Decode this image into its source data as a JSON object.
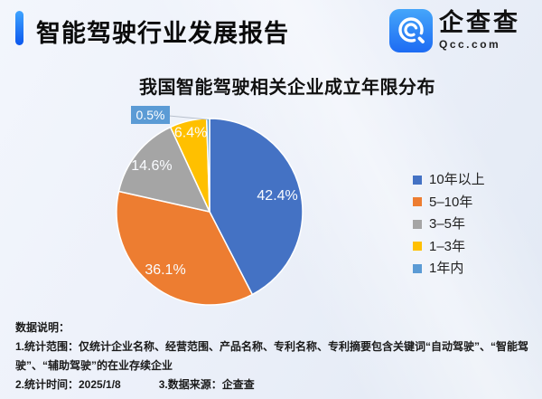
{
  "header": {
    "title": "智能驾驶行业发展报告",
    "logo": {
      "name": "企查查",
      "domain": "Qcc.com"
    }
  },
  "chart": {
    "title": "我国智能驾驶相关企业成立年限分布"
  },
  "chart_data": {
    "type": "pie",
    "title": "我国智能驾驶相关企业成立年限分布",
    "unit": "percent",
    "direction": "clockwise",
    "start_angle_deg": 0,
    "legend_position": "right",
    "slices": [
      {
        "label": "10年以上",
        "value": 42.4,
        "pct": "42.4%",
        "color": "#4472C4"
      },
      {
        "label": "5–10年",
        "value": 36.1,
        "pct": "36.1%",
        "color": "#ED7D31"
      },
      {
        "label": "3–5年",
        "value": 14.6,
        "pct": "14.6%",
        "color": "#A5A5A5"
      },
      {
        "label": "1–3年",
        "value": 6.4,
        "pct": "6.4%",
        "color": "#FFC000"
      },
      {
        "label": "1年内",
        "value": 0.5,
        "pct": "0.5%",
        "color": "#5B9BD5"
      }
    ],
    "callout": {
      "slice": "1年内",
      "pct": "0.5%"
    }
  },
  "footer": {
    "heading": "数据说明：",
    "note1": "1.统计范围：仅统计企业名称、经营范围、产品名称、专利名称、专利摘要包含关键词“自动驾驶”、“智能驾驶”、“辅助驾驶”的在业存续企业",
    "note2": "2.统计时间：2025/1/8",
    "note3": "3.数据来源：企查查"
  }
}
